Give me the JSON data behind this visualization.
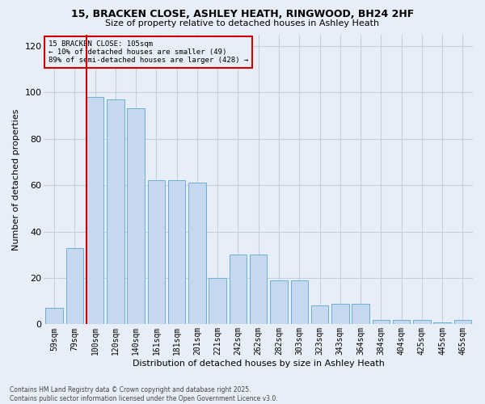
{
  "title_line1": "15, BRACKEN CLOSE, ASHLEY HEATH, RINGWOOD, BH24 2HF",
  "title_line2": "Size of property relative to detached houses in Ashley Heath",
  "xlabel": "Distribution of detached houses by size in Ashley Heath",
  "ylabel": "Number of detached properties",
  "footnote": "Contains HM Land Registry data © Crown copyright and database right 2025.\nContains public sector information licensed under the Open Government Licence v3.0.",
  "annotation_line1": "15 BRACKEN CLOSE: 105sqm",
  "annotation_line2": "← 10% of detached houses are smaller (49)",
  "annotation_line3": "89% of semi-detached houses are larger (428) →",
  "bar_labels": [
    "59sqm",
    "79sqm",
    "100sqm",
    "120sqm",
    "140sqm",
    "161sqm",
    "181sqm",
    "201sqm",
    "221sqm",
    "242sqm",
    "262sqm",
    "282sqm",
    "303sqm",
    "323sqm",
    "343sqm",
    "364sqm",
    "384sqm",
    "404sqm",
    "425sqm",
    "445sqm",
    "465sqm"
  ],
  "bar_values": [
    7,
    33,
    98,
    97,
    93,
    62,
    62,
    61,
    20,
    30,
    30,
    19,
    19,
    8,
    9,
    9,
    2,
    2,
    2,
    1,
    2
  ],
  "bar_color": "#c5d8f0",
  "bar_edge_color": "#6baed6",
  "vline_x": 2,
  "vline_color": "#cc0000",
  "annotation_box_color": "#cc0000",
  "bg_color": "#e8eef8",
  "grid_color": "#c5cfe0",
  "ylim": [
    0,
    125
  ],
  "yticks": [
    0,
    20,
    40,
    60,
    80,
    100,
    120
  ]
}
